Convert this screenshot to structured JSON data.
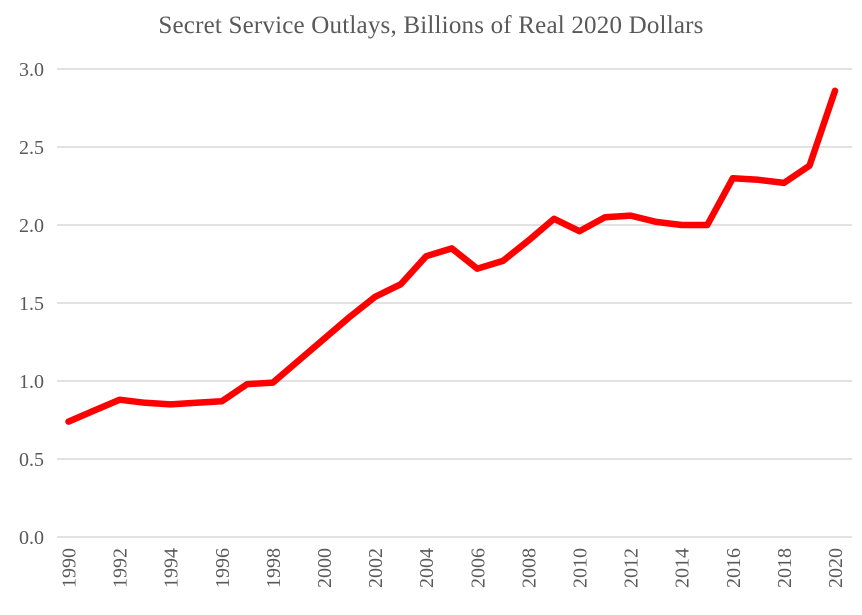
{
  "chart_data": {
    "type": "line",
    "title": "Secret Service Outlays, Billions of Real 2020 Dollars",
    "xlabel": "",
    "ylabel": "",
    "x": [
      1990,
      1991,
      1992,
      1993,
      1994,
      1995,
      1996,
      1997,
      1998,
      1999,
      2000,
      2001,
      2002,
      2003,
      2004,
      2005,
      2006,
      2007,
      2008,
      2009,
      2010,
      2011,
      2012,
      2013,
      2014,
      2015,
      2016,
      2017,
      2018,
      2019,
      2020
    ],
    "series": [
      {
        "name": "Secret Service outlays, billions of real 2020 dollars",
        "values": [
          0.74,
          0.81,
          0.88,
          0.86,
          0.85,
          0.86,
          0.87,
          0.98,
          0.99,
          1.13,
          1.27,
          1.41,
          1.54,
          1.62,
          1.8,
          1.85,
          1.72,
          1.77,
          1.9,
          2.04,
          1.96,
          2.05,
          2.06,
          2.02,
          2.0,
          2.0,
          2.3,
          2.29,
          2.27,
          2.38,
          2.86
        ]
      }
    ],
    "x_tick_labels": [
      "1990",
      "1992",
      "1994",
      "1996",
      "1998",
      "2000",
      "2002",
      "2004",
      "2006",
      "2008",
      "2010",
      "2012",
      "2014",
      "2016",
      "2018",
      "2020"
    ],
    "y_tick_labels": [
      "0.0",
      "0.5",
      "1.0",
      "1.5",
      "2.0",
      "2.5",
      "3.0"
    ],
    "y_ticks": [
      0.0,
      0.5,
      1.0,
      1.5,
      2.0,
      2.5,
      3.0
    ],
    "ylim": [
      0.0,
      3.0
    ],
    "grid": "horizontal",
    "legend": "none",
    "colors": {
      "line": "#FF0000",
      "gridline": "#D9D9D9",
      "text": "#595959",
      "background": "#FFFFFF"
    }
  }
}
